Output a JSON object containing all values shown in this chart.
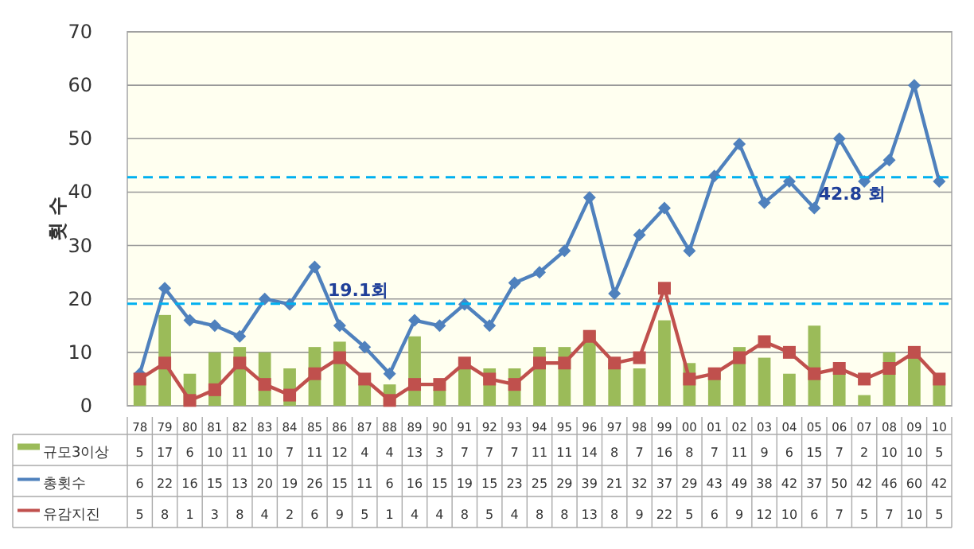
{
  "chart_data": {
    "type": "bar",
    "ylabel": "횟 수",
    "categories": [
      "78",
      "79",
      "80",
      "81",
      "82",
      "83",
      "84",
      "85",
      "86",
      "87",
      "88",
      "89",
      "90",
      "91",
      "92",
      "93",
      "94",
      "95",
      "96",
      "97",
      "98",
      "99",
      "00",
      "01",
      "02",
      "03",
      "04",
      "05",
      "06",
      "07",
      "08",
      "09",
      "10"
    ],
    "series": [
      {
        "name": "규모3이상",
        "color": "#9bbb59",
        "values": [
          5,
          17,
          6,
          10,
          11,
          10,
          7,
          11,
          12,
          4,
          4,
          13,
          3,
          7,
          7,
          7,
          11,
          11,
          14,
          8,
          7,
          16,
          8,
          7,
          11,
          9,
          6,
          15,
          7,
          2,
          10,
          10,
          5
        ]
      },
      {
        "name": "총횟수",
        "type": "line",
        "color": "#4f81bd",
        "marker": "diamond",
        "values": [
          6,
          22,
          16,
          15,
          13,
          20,
          19,
          26,
          15,
          11,
          6,
          16,
          15,
          19,
          15,
          23,
          25,
          29,
          39,
          21,
          32,
          37,
          29,
          43,
          49,
          38,
          42,
          37,
          50,
          42,
          46,
          60,
          42
        ]
      },
      {
        "name": "유감지진",
        "type": "line",
        "color": "#c0504d",
        "marker": "square",
        "values": [
          5,
          8,
          1,
          3,
          8,
          4,
          2,
          6,
          9,
          5,
          1,
          4,
          4,
          8,
          5,
          4,
          8,
          8,
          13,
          8,
          9,
          22,
          5,
          6,
          9,
          12,
          10,
          6,
          7,
          5,
          7,
          10,
          5
        ]
      }
    ],
    "ylim": [
      0,
      70
    ],
    "yticks": [
      0,
      10,
      20,
      30,
      40,
      50,
      60,
      70
    ],
    "grid": "y",
    "legend": "bottom",
    "data_labels": true,
    "ref_lines": [
      {
        "axis": "y",
        "value": 19.1,
        "label": "19.1회",
        "color": "#00b0f0",
        "line_style": "dashed"
      },
      {
        "axis": "y",
        "value": 42.8,
        "label": "42.8 회",
        "color": "#00b0f0",
        "line_style": "dashed"
      }
    ]
  }
}
